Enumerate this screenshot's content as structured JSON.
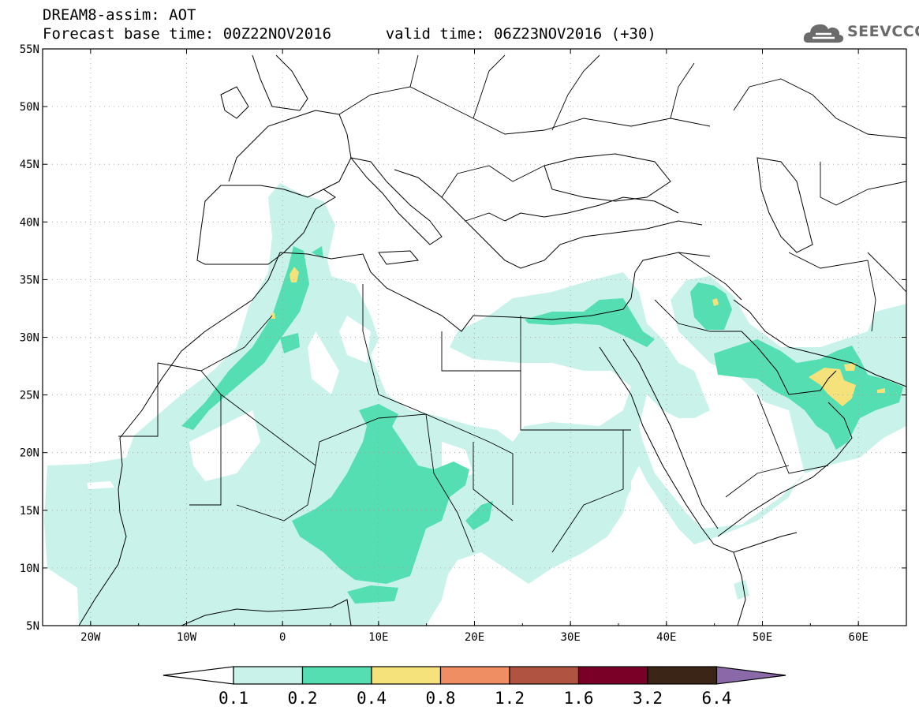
{
  "header": {
    "model_title": "DREAM8-assim: AOT",
    "base_time": "Forecast base time: 00Z22NOV2016",
    "valid_time": "valid time: 06Z23NOV2016 (+30)"
  },
  "logo": {
    "text": "SEEVCCC",
    "icon": "cloud-icon"
  },
  "map": {
    "lon_range": [
      -25,
      65
    ],
    "lat_range": [
      5,
      55
    ],
    "lat_ticks": [
      "5N",
      "10N",
      "15N",
      "20N",
      "25N",
      "30N",
      "35N",
      "40N",
      "45N",
      "50N",
      "55N"
    ],
    "lon_ticks": [
      "20W",
      "10W",
      "0",
      "10E",
      "20E",
      "30E",
      "40E",
      "50E",
      "60E"
    ]
  },
  "colorbar": {
    "labels": [
      "0.1",
      "0.2",
      "0.4",
      "0.8",
      "1.2",
      "1.6",
      "3.2",
      "6.4"
    ],
    "colors": [
      "#ffffff",
      "#c8f2ea",
      "#55deb1",
      "#f6e27a",
      "#ee8e62",
      "#b05441",
      "#7b0027",
      "#3b2517",
      "#8b68a8"
    ]
  }
}
